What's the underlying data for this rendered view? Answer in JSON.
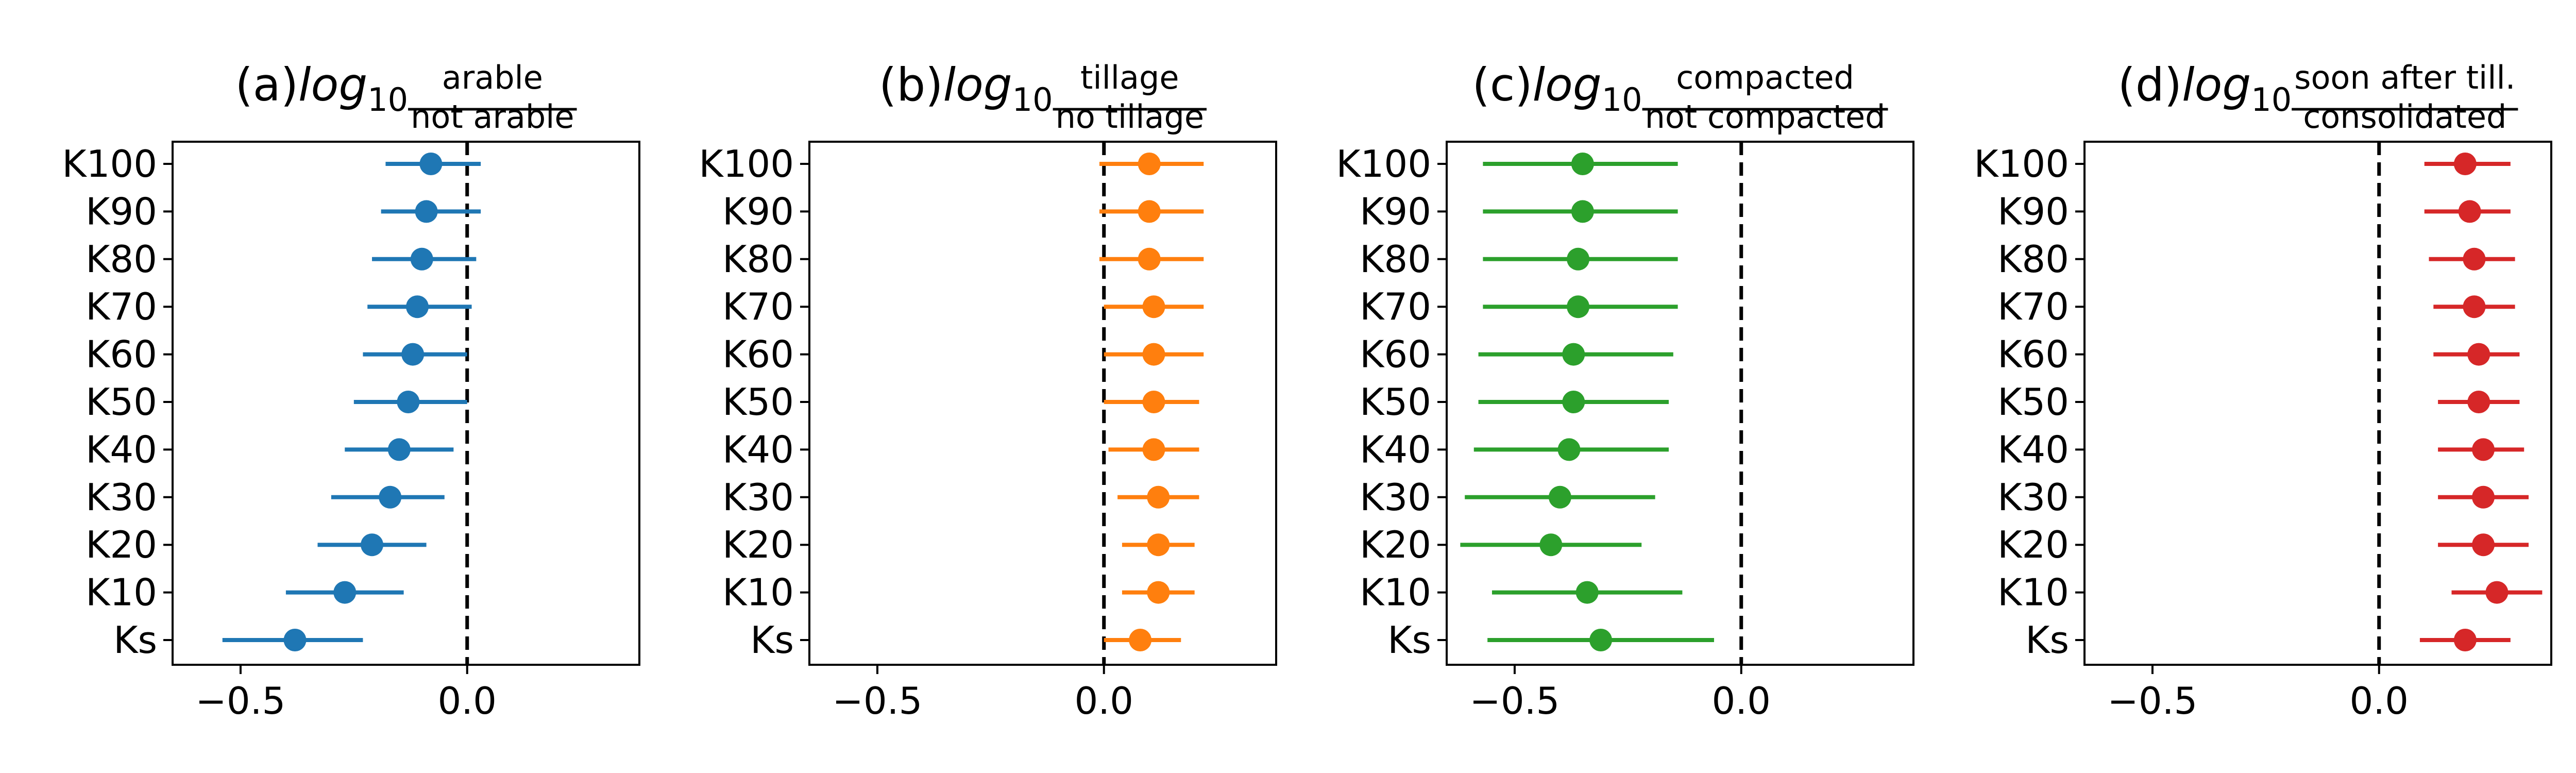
{
  "figure": {
    "panels": [
      {
        "prefix": "(a) ",
        "log": "log",
        "sub": "10",
        "num": "arable",
        "den": "not arable",
        "color": "#1f77b4"
      },
      {
        "prefix": "(b) ",
        "log": "log",
        "sub": "10",
        "num": "tillage",
        "den": "no tillage",
        "color": "#ff7f0e"
      },
      {
        "prefix": "(c) ",
        "log": "log",
        "sub": "10",
        "num": "compacted",
        "den": "not compacted",
        "color": "#2ca02c"
      },
      {
        "prefix": "(d) ",
        "log": "log",
        "sub": "10",
        "num": "soon after till.",
        "den": "consolidated",
        "color": "#d62728"
      }
    ]
  },
  "chart_data": [
    {
      "type": "scatter",
      "title": "(a) log10 arable / not arable",
      "categories": [
        "K100",
        "K90",
        "K80",
        "K70",
        "K60",
        "K50",
        "K40",
        "K30",
        "K20",
        "K10",
        "Ks"
      ],
      "values": [
        -0.08,
        -0.09,
        -0.1,
        -0.11,
        -0.12,
        -0.13,
        -0.15,
        -0.17,
        -0.21,
        -0.27,
        -0.38
      ],
      "ci_low": [
        -0.18,
        -0.19,
        -0.21,
        -0.22,
        -0.23,
        -0.25,
        -0.27,
        -0.3,
        -0.33,
        -0.4,
        -0.54
      ],
      "ci_high": [
        0.03,
        0.03,
        0.02,
        0.01,
        0.0,
        0.0,
        -0.03,
        -0.05,
        -0.09,
        -0.14,
        -0.23
      ],
      "xlim": [
        -0.65,
        0.38
      ],
      "xticks": [
        "−0.5",
        "0.0"
      ],
      "xtick_values": [
        -0.5,
        0.0
      ],
      "reference_line": 0.0
    },
    {
      "type": "scatter",
      "title": "(b) log10 tillage / no tillage",
      "categories": [
        "K100",
        "K90",
        "K80",
        "K70",
        "K60",
        "K50",
        "K40",
        "K30",
        "K20",
        "K10",
        "Ks"
      ],
      "values": [
        0.1,
        0.1,
        0.1,
        0.11,
        0.11,
        0.11,
        0.11,
        0.12,
        0.12,
        0.12,
        0.08
      ],
      "ci_low": [
        -0.01,
        -0.01,
        -0.01,
        0.0,
        0.0,
        0.0,
        0.01,
        0.03,
        0.04,
        0.04,
        0.0
      ],
      "ci_high": [
        0.22,
        0.22,
        0.22,
        0.22,
        0.22,
        0.21,
        0.21,
        0.21,
        0.2,
        0.2,
        0.17
      ],
      "xlim": [
        -0.65,
        0.38
      ],
      "xticks": [
        "−0.5",
        "0.0"
      ],
      "xtick_values": [
        -0.5,
        0.0
      ],
      "reference_line": 0.0
    },
    {
      "type": "scatter",
      "title": "(c) log10 compacted / not compacted",
      "categories": [
        "K100",
        "K90",
        "K80",
        "K70",
        "K60",
        "K50",
        "K40",
        "K30",
        "K20",
        "K10",
        "Ks"
      ],
      "values": [
        -0.35,
        -0.35,
        -0.36,
        -0.36,
        -0.37,
        -0.37,
        -0.38,
        -0.4,
        -0.42,
        -0.34,
        -0.31
      ],
      "ci_low": [
        -0.57,
        -0.57,
        -0.57,
        -0.57,
        -0.58,
        -0.58,
        -0.59,
        -0.61,
        -0.62,
        -0.55,
        -0.56
      ],
      "ci_high": [
        -0.14,
        -0.14,
        -0.14,
        -0.14,
        -0.15,
        -0.16,
        -0.16,
        -0.19,
        -0.22,
        -0.13,
        -0.06
      ],
      "xlim": [
        -0.65,
        0.38
      ],
      "xticks": [
        "−0.5",
        "0.0"
      ],
      "xtick_values": [
        -0.5,
        0.0
      ],
      "reference_line": 0.0
    },
    {
      "type": "scatter",
      "title": "(d) log10 soon after till. / consolidated",
      "categories": [
        "K100",
        "K90",
        "K80",
        "K70",
        "K60",
        "K50",
        "K40",
        "K30",
        "K20",
        "K10",
        "Ks"
      ],
      "values": [
        0.19,
        0.2,
        0.21,
        0.21,
        0.22,
        0.22,
        0.23,
        0.23,
        0.23,
        0.26,
        0.19
      ],
      "ci_low": [
        0.1,
        0.1,
        0.11,
        0.12,
        0.12,
        0.13,
        0.13,
        0.13,
        0.13,
        0.16,
        0.09
      ],
      "ci_high": [
        0.29,
        0.29,
        0.3,
        0.3,
        0.31,
        0.31,
        0.32,
        0.33,
        0.33,
        0.36,
        0.29
      ],
      "xlim": [
        -0.65,
        0.38
      ],
      "xticks": [
        "−0.5",
        "0.0"
      ],
      "xtick_values": [
        -0.5,
        0.0
      ],
      "reference_line": 0.0
    }
  ]
}
